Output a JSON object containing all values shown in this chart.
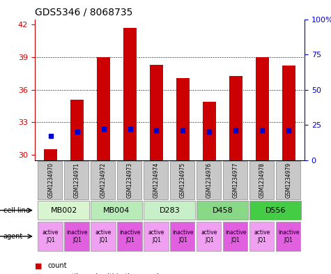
{
  "title": "GDS5346 / 8068735",
  "samples": [
    "GSM1234970",
    "GSM1234971",
    "GSM1234972",
    "GSM1234973",
    "GSM1234974",
    "GSM1234975",
    "GSM1234976",
    "GSM1234977",
    "GSM1234978",
    "GSM1234979"
  ],
  "count_values": [
    30.55,
    35.05,
    39.0,
    41.7,
    38.3,
    37.05,
    34.9,
    37.25,
    39.0,
    38.2
  ],
  "percentile_values": [
    17,
    20,
    22,
    22,
    21,
    21,
    20,
    21,
    21,
    21
  ],
  "ymin": 29.5,
  "ymax": 42.5,
  "yticks": [
    30,
    33,
    36,
    39,
    42
  ],
  "y2ticks": [
    0,
    25,
    50,
    75,
    100
  ],
  "y2ticklabels": [
    "0",
    "25",
    "50",
    "75",
    "100%"
  ],
  "cell_lines": [
    {
      "label": "MB002",
      "span": [
        0,
        2
      ],
      "color": "#d8f5d0"
    },
    {
      "label": "MB004",
      "span": [
        2,
        4
      ],
      "color": "#b8ebb8"
    },
    {
      "label": "D283",
      "span": [
        4,
        6
      ],
      "color": "#c8f0c8"
    },
    {
      "label": "D458",
      "span": [
        6,
        8
      ],
      "color": "#88d888"
    },
    {
      "label": "D556",
      "span": [
        8,
        10
      ],
      "color": "#44cc44"
    }
  ],
  "agents": [
    {
      "label": "active\nJQ1",
      "color": "#f0a0f0"
    },
    {
      "label": "inactive\nJQ1",
      "color": "#e060e0"
    },
    {
      "label": "active\nJQ1",
      "color": "#f0a0f0"
    },
    {
      "label": "inactive\nJQ1",
      "color": "#e060e0"
    },
    {
      "label": "active\nJQ1",
      "color": "#f0a0f0"
    },
    {
      "label": "inactive\nJQ1",
      "color": "#e060e0"
    },
    {
      "label": "active\nJQ1",
      "color": "#f0a0f0"
    },
    {
      "label": "inactive\nJQ1",
      "color": "#e060e0"
    },
    {
      "label": "active\nJQ1",
      "color": "#f0a0f0"
    },
    {
      "label": "inactive\nJQ1",
      "color": "#e060e0"
    }
  ],
  "bar_color": "#cc0000",
  "dot_color": "#0000cc",
  "left_label_color": "#cc0000",
  "right_label_color": "#0000cc",
  "sample_box_color": "#c8c8c8",
  "grid_color": "#000000"
}
